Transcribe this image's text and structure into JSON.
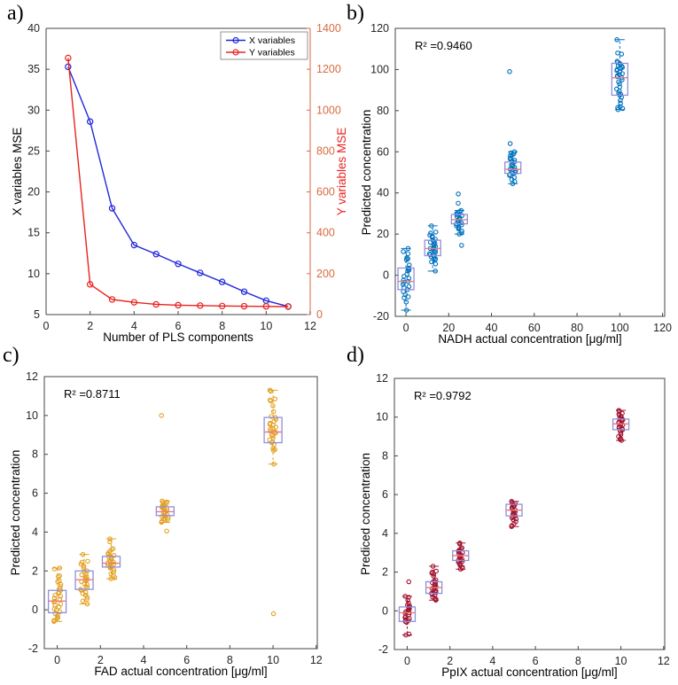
{
  "figure": {
    "background": "#ffffff",
    "axis_color": "#444444",
    "tick_label_color": "#262626",
    "box_color": "#8f8fdc",
    "median_color": "#e87f80"
  },
  "chart_data": [
    {
      "id": "a",
      "label": "a)",
      "type": "line",
      "xlabel": "Number of PLS components",
      "left_ylabel": "X variables MSE",
      "right_ylabel": "Y variables MSE",
      "right_axis_color": "#d96a41",
      "right_label_color": "#e8231e",
      "xlim": [
        0,
        12
      ],
      "xticks": [
        0,
        2,
        4,
        6,
        8,
        10,
        12
      ],
      "left_ylim": [
        5,
        40
      ],
      "left_yticks": [
        5,
        10,
        15,
        20,
        25,
        30,
        35,
        40
      ],
      "right_ylim": [
        0,
        1400
      ],
      "right_yticks": [
        0,
        200,
        400,
        600,
        800,
        1000,
        1200,
        1400
      ],
      "legend": {
        "position": "top-right",
        "entries": [
          {
            "label": "X variables",
            "color": "#2127d8"
          },
          {
            "label": "Y variables",
            "color": "#e8231e"
          }
        ]
      },
      "series": [
        {
          "name": "X variables",
          "axis": "left",
          "color": "#2127d8",
          "marker": "o",
          "x": [
            1,
            2,
            3,
            4,
            5,
            6,
            7,
            8,
            9,
            10,
            11
          ],
          "y": [
            35.3,
            28.6,
            18.0,
            13.5,
            12.4,
            11.2,
            10.1,
            9.0,
            7.8,
            6.7,
            6.0
          ]
        },
        {
          "name": "Y variables",
          "axis": "right",
          "color": "#e8231e",
          "marker": "o",
          "x": [
            1,
            2,
            3,
            4,
            5,
            6,
            7,
            8,
            9,
            10,
            11
          ],
          "y": [
            1255,
            148,
            74,
            60,
            50,
            46,
            44,
            42,
            41,
            40,
            39
          ]
        }
      ]
    },
    {
      "id": "b",
      "label": "b)",
      "type": "box_scatter",
      "annotation": "R² =0.9460",
      "xlabel": "NADH actual concentration [μg/ml]",
      "ylabel": "Predicted concentration",
      "marker_color": "#0072bd",
      "xlim": [
        -5,
        121
      ],
      "xticks": [
        0,
        20,
        40,
        60,
        80,
        100,
        120
      ],
      "ylim": [
        -20,
        120
      ],
      "yticks": [
        -20,
        0,
        20,
        40,
        60,
        80,
        100,
        120
      ],
      "groups": [
        {
          "x": 0,
          "box": {
            "q1": -7,
            "median": -3,
            "q3": 3.5,
            "whisker_low": -17,
            "whisker_high": 13
          },
          "points": [
            13,
            11.5,
            10.5,
            8.5,
            8,
            7.5,
            5,
            3.5,
            3,
            2.5,
            2,
            0.5,
            -0.5,
            -1.5,
            -2.5,
            -3,
            -3.5,
            -4.5,
            -5.5,
            -6,
            -7,
            -8,
            -9.5,
            -10.5,
            -11,
            -13,
            -17
          ]
        },
        {
          "x": 12.5,
          "box": {
            "q1": 9.5,
            "median": 13,
            "q3": 17,
            "whisker_low": 2,
            "whisker_high": 24
          },
          "points": [
            24,
            21,
            20.5,
            19.5,
            19,
            18.5,
            17.5,
            17,
            16.5,
            16,
            15.5,
            15,
            14.5,
            14,
            13.5,
            13,
            12.5,
            12,
            11.5,
            11,
            10.5,
            10,
            9.5,
            9,
            8.5,
            8,
            7.5,
            6.5,
            5.5,
            2
          ]
        },
        {
          "x": 25,
          "box": {
            "q1": 25,
            "median": 27,
            "q3": 29.5,
            "whisker_low": 20,
            "whisker_high": 31.5
          },
          "points": [
            39.5,
            35,
            31.5,
            31,
            30.5,
            30,
            29.5,
            29,
            28.5,
            28,
            27.5,
            27,
            26.5,
            26,
            25.5,
            25,
            24.5,
            24,
            23.5,
            23,
            22.5,
            21.5,
            20.5,
            20,
            14.5
          ]
        },
        {
          "x": 50,
          "box": {
            "q1": 49.5,
            "median": 51.5,
            "q3": 55,
            "whisker_low": 44.5,
            "whisker_high": 60
          },
          "points": [
            99,
            64,
            60,
            59.5,
            59,
            58.5,
            58,
            57,
            56.5,
            56,
            55.5,
            55,
            54,
            53.5,
            53,
            52.5,
            52,
            51.5,
            51,
            50.5,
            50,
            49.5,
            49,
            48.5,
            47.5,
            46.5,
            45.5,
            44.5
          ]
        },
        {
          "x": 100,
          "box": {
            "q1": 87.5,
            "median": 96,
            "q3": 103,
            "whisker_low": 80.5,
            "whisker_high": 114.5
          },
          "points": [
            114.5,
            108,
            107.5,
            104,
            103.5,
            103,
            102.5,
            102,
            101.5,
            101,
            100.5,
            100,
            99.5,
            99,
            98,
            97.5,
            97,
            96.5,
            96,
            95,
            94,
            93,
            91.5,
            90.5,
            89.5,
            88.5,
            88,
            87.5,
            86.5,
            85,
            83.5,
            82,
            81.5,
            81,
            80.5
          ]
        }
      ]
    },
    {
      "id": "c",
      "label": "c)",
      "type": "box_scatter",
      "annotation": "R² =0.8711",
      "xlabel": "FAD actual concentration [μg/ml]",
      "ylabel": "Predicted concentration",
      "marker_color": "#e3a021",
      "xlim": [
        -0.6,
        12.05
      ],
      "xticks": [
        0,
        2,
        4,
        6,
        8,
        10,
        12
      ],
      "ylim": [
        -2,
        12
      ],
      "yticks": [
        -2,
        0,
        2,
        4,
        6,
        8,
        10,
        12
      ],
      "groups": [
        {
          "x": 0,
          "box": {
            "q1": -0.15,
            "median": 0.45,
            "q3": 1.0,
            "whisker_low": -0.6,
            "whisker_high": 2.15
          },
          "points": [
            2.15,
            2.1,
            1.75,
            1.7,
            1.5,
            1.45,
            1.3,
            1.2,
            1.1,
            1.0,
            0.9,
            0.85,
            0.75,
            0.7,
            0.6,
            0.55,
            0.45,
            0.4,
            0.3,
            0.25,
            0.15,
            0.05,
            0.0,
            -0.1,
            -0.2,
            -0.3,
            -0.4,
            -0.45,
            -0.55,
            -0.6
          ]
        },
        {
          "x": 1.25,
          "box": {
            "q1": 1.05,
            "median": 1.55,
            "q3": 2.0,
            "whisker_low": 0.3,
            "whisker_high": 2.85
          },
          "points": [
            2.85,
            2.5,
            2.45,
            2.35,
            2.25,
            2.15,
            2.0,
            1.95,
            1.85,
            1.8,
            1.7,
            1.65,
            1.6,
            1.55,
            1.5,
            1.45,
            1.35,
            1.3,
            1.2,
            1.15,
            1.05,
            1.0,
            0.9,
            0.85,
            0.75,
            0.65,
            0.55,
            0.45,
            0.3
          ]
        },
        {
          "x": 2.5,
          "box": {
            "q1": 2.2,
            "median": 2.4,
            "q3": 2.75,
            "whisker_low": 1.6,
            "whisker_high": 3.65
          },
          "points": [
            3.65,
            3.5,
            3.15,
            3.1,
            3.0,
            2.9,
            2.85,
            2.8,
            2.75,
            2.7,
            2.65,
            2.6,
            2.55,
            2.5,
            2.45,
            2.4,
            2.35,
            2.3,
            2.25,
            2.2,
            2.15,
            2.05,
            1.95,
            1.85,
            1.75,
            1.65,
            1.6
          ]
        },
        {
          "x": 5,
          "box": {
            "q1": 4.85,
            "median": 5.05,
            "q3": 5.3,
            "whisker_low": 4.5,
            "whisker_high": 5.6
          },
          "points": [
            10.0,
            5.6,
            5.55,
            5.5,
            5.45,
            5.4,
            5.35,
            5.3,
            5.25,
            5.2,
            5.15,
            5.1,
            5.05,
            5.0,
            4.95,
            4.9,
            4.85,
            4.8,
            4.75,
            4.7,
            4.65,
            4.6,
            4.55,
            4.5,
            4.05
          ]
        },
        {
          "x": 10,
          "box": {
            "q1": 8.6,
            "median": 9.15,
            "q3": 9.9,
            "whisker_low": 7.5,
            "whisker_high": 11.3
          },
          "points": [
            11.3,
            11.25,
            10.85,
            10.8,
            10.75,
            10.5,
            10.2,
            9.95,
            9.9,
            9.8,
            9.7,
            9.6,
            9.55,
            9.5,
            9.4,
            9.35,
            9.3,
            9.2,
            9.15,
            9.1,
            9.0,
            8.95,
            8.85,
            8.75,
            8.65,
            8.6,
            8.5,
            8.3,
            8.25,
            8.2,
            7.5,
            -0.2
          ]
        }
      ]
    },
    {
      "id": "d",
      "label": "d)",
      "type": "box_scatter",
      "annotation": "R² =0.9792",
      "xlabel": "PpIX actual concentration [μg/ml]",
      "ylabel": "Prediced concentration",
      "marker_color": "#a2142f",
      "xlim": [
        -0.6,
        12.05
      ],
      "xticks": [
        0,
        2,
        4,
        6,
        8,
        10,
        12
      ],
      "ylim": [
        -2,
        12
      ],
      "yticks": [
        -2,
        0,
        2,
        4,
        6,
        8,
        10,
        12
      ],
      "groups": [
        {
          "x": 0,
          "box": {
            "q1": -0.55,
            "median": -0.1,
            "q3": 0.2,
            "whisker_low": -1.25,
            "whisker_high": 0.75
          },
          "points": [
            1.5,
            0.75,
            0.7,
            0.55,
            0.4,
            0.3,
            0.25,
            0.2,
            0.15,
            0.1,
            0.05,
            0.0,
            -0.05,
            -0.1,
            -0.15,
            -0.2,
            -0.3,
            -0.35,
            -0.4,
            -0.45,
            -0.5,
            -0.55,
            -0.6,
            -1.2,
            -1.25
          ]
        },
        {
          "x": 1.25,
          "box": {
            "q1": 0.9,
            "median": 1.2,
            "q3": 1.5,
            "whisker_low": 0.55,
            "whisker_high": 2.3
          },
          "points": [
            2.3,
            2.05,
            2.0,
            1.95,
            1.9,
            1.8,
            1.6,
            1.55,
            1.5,
            1.45,
            1.4,
            1.35,
            1.3,
            1.25,
            1.2,
            1.15,
            1.1,
            1.05,
            1.0,
            0.95,
            0.9,
            0.85,
            0.8,
            0.7,
            0.65,
            0.6,
            0.55
          ]
        },
        {
          "x": 2.5,
          "box": {
            "q1": 2.6,
            "median": 2.85,
            "q3": 3.1,
            "whisker_low": 2.15,
            "whisker_high": 3.5
          },
          "points": [
            3.5,
            3.45,
            3.25,
            3.2,
            3.15,
            3.1,
            3.05,
            3.0,
            2.95,
            2.9,
            2.85,
            2.8,
            2.75,
            2.7,
            2.65,
            2.6,
            2.55,
            2.5,
            2.45,
            2.4,
            2.35,
            2.25,
            2.2,
            2.15
          ]
        },
        {
          "x": 5,
          "box": {
            "q1": 4.9,
            "median": 5.2,
            "q3": 5.5,
            "whisker_low": 4.35,
            "whisker_high": 5.65
          },
          "points": [
            5.65,
            5.6,
            5.55,
            5.5,
            5.45,
            5.4,
            5.35,
            5.3,
            5.25,
            5.2,
            5.15,
            5.1,
            5.05,
            5.0,
            4.95,
            4.9,
            4.85,
            4.8,
            4.75,
            4.7,
            4.6,
            4.5,
            4.4,
            4.35
          ]
        },
        {
          "x": 10,
          "box": {
            "q1": 9.35,
            "median": 9.65,
            "q3": 9.9,
            "whisker_low": 8.8,
            "whisker_high": 10.35
          },
          "points": [
            10.35,
            10.3,
            10.2,
            10.15,
            10.1,
            10.05,
            10.0,
            9.95,
            9.9,
            9.85,
            9.8,
            9.75,
            9.7,
            9.65,
            9.6,
            9.55,
            9.5,
            9.45,
            9.4,
            9.35,
            9.3,
            9.2,
            9.1,
            9.0,
            8.9,
            8.85,
            8.8
          ]
        }
      ]
    }
  ]
}
